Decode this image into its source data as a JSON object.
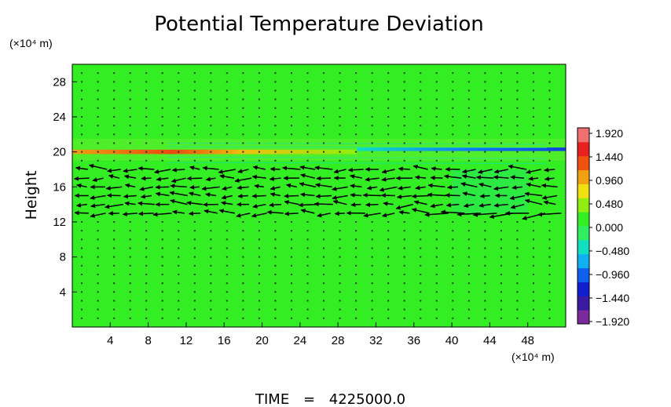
{
  "chart_data": {
    "type": "heatmap",
    "title": "Potential Temperature Deviation",
    "ylabel": "Height",
    "x_unit": "(×10⁴ m)",
    "y_unit": "(×10⁴ m)",
    "xlim": [
      0,
      52
    ],
    "ylim": [
      0,
      30
    ],
    "xticks": [
      4,
      8,
      12,
      16,
      20,
      24,
      28,
      32,
      36,
      40,
      44,
      48
    ],
    "yticks": [
      4,
      8,
      12,
      16,
      20,
      24,
      28
    ],
    "grid": false,
    "background_color": "#33ee22",
    "overlay": "wind vector arrows",
    "features": [
      {
        "kind": "warm band",
        "y": 20.0,
        "x_range": [
          0,
          30
        ],
        "value": 1.2
      },
      {
        "kind": "cool band",
        "y": 20.3,
        "x_range": [
          30,
          52
        ],
        "value": -1.4
      },
      {
        "kind": "strong leftward flow",
        "y_range": [
          12.5,
          18.5
        ],
        "x_range": [
          0,
          52
        ]
      }
    ],
    "colorbar": {
      "labels": [
        "1.920",
        "1.440",
        "0.960",
        "0.480",
        "0.000",
        "−0.480",
        "−0.960",
        "−1.440",
        "−1.920"
      ],
      "min": -1.92,
      "max": 1.92,
      "colors": [
        "#7a2a9e",
        "#3a1aa0",
        "#1020d0",
        "#1060f0",
        "#10b0f0",
        "#10e0c0",
        "#30ee60",
        "#33ee22",
        "#90ee10",
        "#f0e010",
        "#f0a010",
        "#f05010",
        "#e82020",
        "#f07070"
      ]
    }
  },
  "footer": {
    "label": "TIME",
    "equals": "=",
    "value": "4225000.0"
  }
}
